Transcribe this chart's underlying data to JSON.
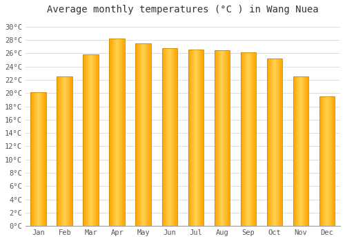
{
  "months": [
    "Jan",
    "Feb",
    "Mar",
    "Apr",
    "May",
    "Jun",
    "Jul",
    "Aug",
    "Sep",
    "Oct",
    "Nov",
    "Dec"
  ],
  "values": [
    20.1,
    22.5,
    25.8,
    28.2,
    27.5,
    26.8,
    26.5,
    26.4,
    26.1,
    25.2,
    22.5,
    19.5
  ],
  "bar_color_left": "#FFA500",
  "bar_color_center": "#FFD050",
  "bar_color_right": "#FFA500",
  "title": "Average monthly temperatures (°C ) in Wang Nuea",
  "ytick_labels": [
    "0°C",
    "2°C",
    "4°C",
    "6°C",
    "8°C",
    "10°C",
    "12°C",
    "14°C",
    "16°C",
    "18°C",
    "20°C",
    "22°C",
    "24°C",
    "26°C",
    "28°C",
    "30°C"
  ],
  "ytick_values": [
    0,
    2,
    4,
    6,
    8,
    10,
    12,
    14,
    16,
    18,
    20,
    22,
    24,
    26,
    28,
    30
  ],
  "ylim": [
    0,
    31
  ],
  "background_color": "#ffffff",
  "grid_color": "#dddddd",
  "title_fontsize": 10,
  "tick_fontsize": 7.5,
  "font_family": "monospace",
  "bar_width": 0.6,
  "n_gradient_strips": 30
}
